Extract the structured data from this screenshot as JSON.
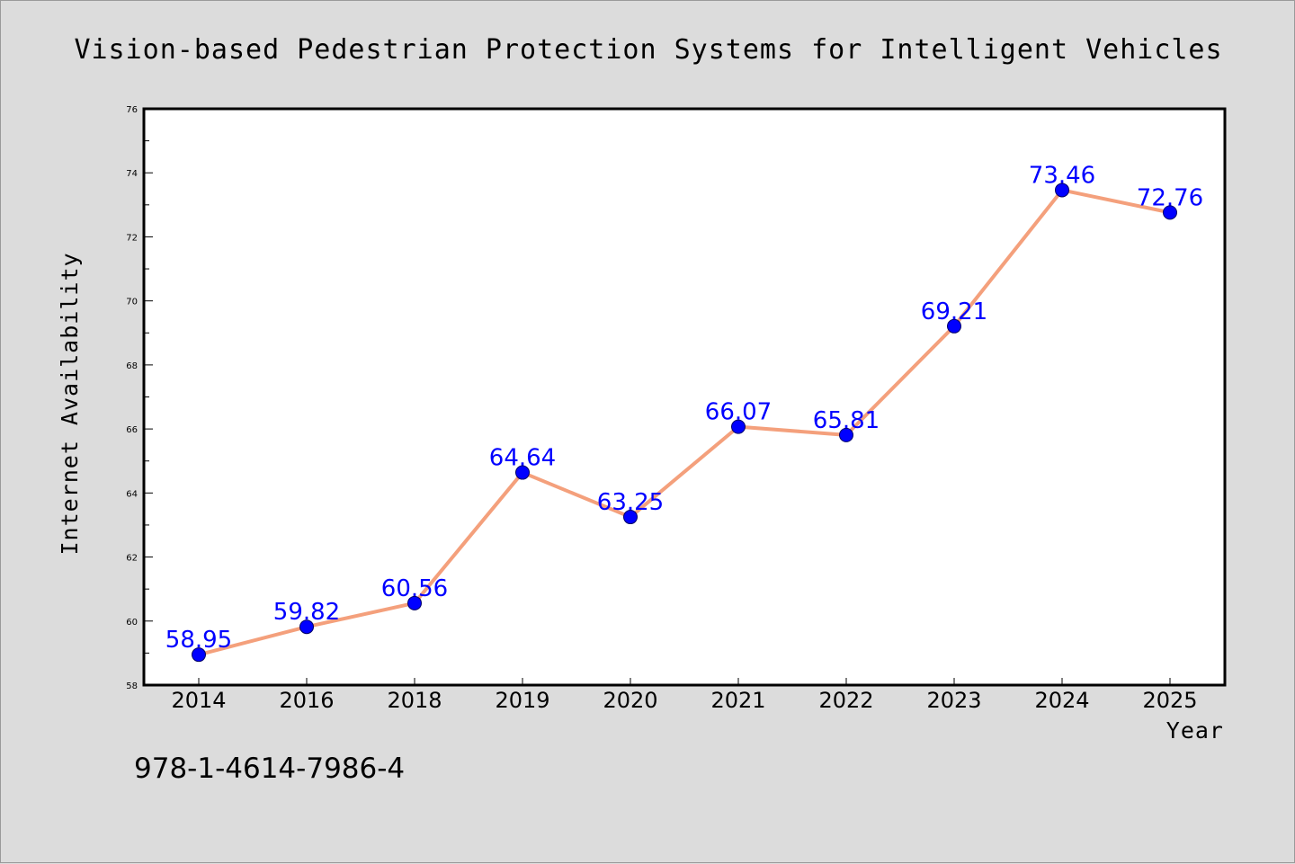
{
  "chart_data": {
    "type": "line",
    "title": "Vision-based Pedestrian Protection Systems for Intelligent Vehicles",
    "xlabel": "Year",
    "ylabel": "Internet Availability",
    "categories": [
      "2014",
      "2016",
      "2018",
      "2019",
      "2020",
      "2021",
      "2022",
      "2023",
      "2024",
      "2025"
    ],
    "values": [
      58.95,
      59.82,
      60.56,
      64.64,
      63.25,
      66.07,
      65.81,
      69.21,
      73.46,
      72.76
    ],
    "data_labels": [
      "58.95",
      "59.82",
      "60.56",
      "64.64",
      "63.25",
      "66.07",
      "65.81",
      "69.21",
      "73.46",
      "72.76"
    ],
    "ylim": [
      58,
      76
    ],
    "y_ticks": [
      "58",
      "60",
      "62",
      "64",
      "66",
      "68",
      "70",
      "72",
      "74",
      "76"
    ],
    "grid": false,
    "line_color": "#f4a07c",
    "marker_color": "#0000ff",
    "label_color": "#0000ff",
    "background_color": "#dcdcdc",
    "plot_background_color": "#ffffff"
  },
  "footer": {
    "isbn": "978-1-4614-7986-4"
  }
}
